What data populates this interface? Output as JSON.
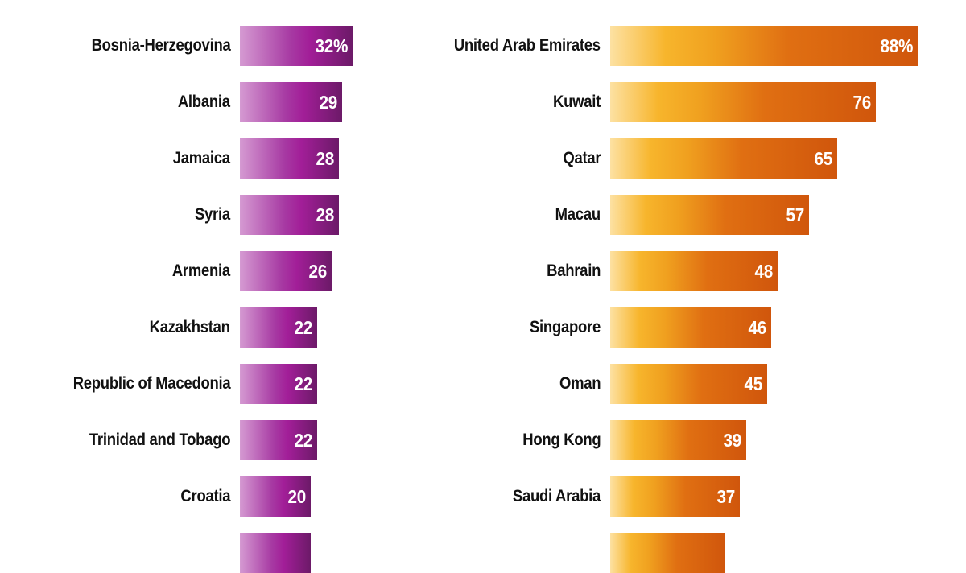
{
  "chart_data": [
    {
      "type": "bar",
      "orientation": "horizontal",
      "categories": [
        "Bosnia-Herzegovina",
        "Albania",
        "Jamaica",
        "Syria",
        "Armenia",
        "Kazakhstan",
        "Republic of Macedonia",
        "Trinidad and Tobago",
        "Croatia",
        ""
      ],
      "values": [
        32,
        29,
        28,
        28,
        26,
        22,
        22,
        22,
        20,
        20
      ],
      "value_labels": [
        "32%",
        "29",
        "28",
        "28",
        "26",
        "22",
        "22",
        "22",
        "20",
        ""
      ],
      "title": "",
      "xlabel": "",
      "ylabel": "",
      "xlim": [
        0,
        100
      ],
      "grid": false,
      "colors": {
        "start": "#d59ad2",
        "mid": "#a21e98",
        "end": "#6c1a68"
      }
    },
    {
      "type": "bar",
      "orientation": "horizontal",
      "categories": [
        "United Arab Emirates",
        "Kuwait",
        "Qatar",
        "Macau",
        "Bahrain",
        "Singapore",
        "Oman",
        "Hong Kong",
        "Saudi Arabia",
        ""
      ],
      "values": [
        88,
        76,
        65,
        57,
        48,
        46,
        45,
        39,
        37,
        33
      ],
      "value_labels": [
        "88%",
        "76",
        "65",
        "57",
        "48",
        "46",
        "45",
        "39",
        "37",
        ""
      ],
      "title": "",
      "xlabel": "",
      "ylabel": "",
      "xlim": [
        0,
        100
      ],
      "grid": false,
      "colors": {
        "start": "#fde1a2",
        "mid": "#f0a01f",
        "end": "#d0560c"
      }
    }
  ]
}
